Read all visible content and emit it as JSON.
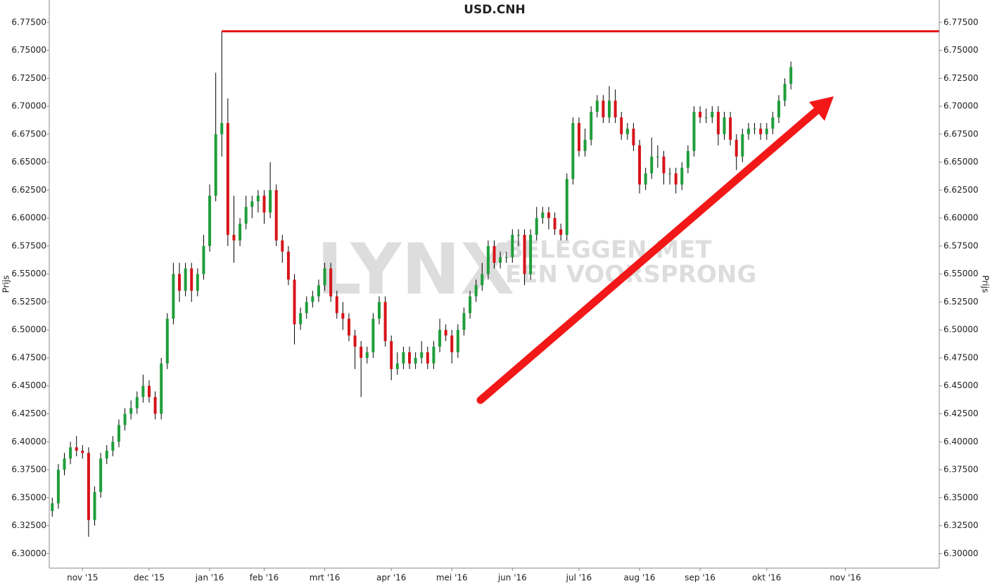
{
  "chart_data": {
    "type": "candlestick",
    "title": "USD.CNH",
    "y_label": "Prijs",
    "watermark": {
      "logo": "LYNX",
      "line1": "BELEGGEN MET",
      "line2": "EEN VOORSPRONG"
    },
    "ylim": [
      6.287,
      6.795
    ],
    "yticks": [
      {
        "value": 6.3,
        "label": "6.30000"
      },
      {
        "value": 6.325,
        "label": "6.32500"
      },
      {
        "value": 6.35,
        "label": "6.35000"
      },
      {
        "value": 6.375,
        "label": "6.37500"
      },
      {
        "value": 6.4,
        "label": "6.40000"
      },
      {
        "value": 6.425,
        "label": "6.42500"
      },
      {
        "value": 6.45,
        "label": "6.45000"
      },
      {
        "value": 6.475,
        "label": "6.47500"
      },
      {
        "value": 6.5,
        "label": "6.50000"
      },
      {
        "value": 6.525,
        "label": "6.52500"
      },
      {
        "value": 6.55,
        "label": "6.55000"
      },
      {
        "value": 6.575,
        "label": "6.57500"
      },
      {
        "value": 6.6,
        "label": "6.60000"
      },
      {
        "value": 6.625,
        "label": "6.62500"
      },
      {
        "value": 6.65,
        "label": "6.65000"
      },
      {
        "value": 6.675,
        "label": "6.67500"
      },
      {
        "value": 6.7,
        "label": "6.70000"
      },
      {
        "value": 6.725,
        "label": "6.72500"
      },
      {
        "value": 6.75,
        "label": "6.75000"
      },
      {
        "value": 6.775,
        "label": "6.77500"
      }
    ],
    "up_color": "#1f9e3a",
    "down_color": "#d7141a",
    "wick_color": "#000000",
    "hline": {
      "value": 6.767,
      "color": "#e8141a"
    },
    "arrow_color": "#f21818",
    "categories": [
      null,
      null,
      null,
      null,
      null,
      "nov '15",
      null,
      null,
      null,
      null,
      null,
      null,
      null,
      null,
      null,
      null,
      "dec '15",
      null,
      null,
      null,
      null,
      null,
      null,
      null,
      null,
      null,
      "jan '16",
      null,
      null,
      null,
      null,
      null,
      null,
      null,
      null,
      "feb '16",
      null,
      null,
      null,
      null,
      null,
      null,
      null,
      null,
      null,
      "mrt '16",
      null,
      null,
      null,
      null,
      null,
      null,
      null,
      null,
      null,
      null,
      "apr '16",
      null,
      null,
      null,
      null,
      null,
      null,
      null,
      null,
      null,
      "mei '16",
      null,
      null,
      null,
      null,
      null,
      null,
      null,
      null,
      null,
      "jun '16",
      null,
      null,
      null,
      null,
      null,
      null,
      null,
      null,
      null,
      null,
      "jul '16",
      null,
      null,
      null,
      null,
      null,
      null,
      null,
      null,
      null,
      "aug '16",
      null,
      null,
      null,
      null,
      null,
      null,
      null,
      null,
      null,
      "sep '16",
      null,
      null,
      null,
      null,
      null,
      null,
      null,
      null,
      null,
      null,
      "okt '16",
      null,
      null,
      null,
      null,
      null,
      null,
      null,
      null,
      null,
      null,
      null,
      null,
      "nov '16",
      null,
      null,
      null,
      null,
      null,
      null,
      null,
      null,
      null,
      null,
      null,
      null,
      null,
      null,
      null
    ],
    "open": [
      6.338,
      6.345,
      6.375,
      6.385,
      6.395,
      6.392,
      6.39,
      6.33,
      6.355,
      6.385,
      6.392,
      6.4,
      6.415,
      6.425,
      6.43,
      6.44,
      6.45,
      6.44,
      6.425,
      6.47,
      6.51,
      6.55,
      6.535,
      6.555,
      6.535,
      6.55,
      6.575,
      6.62,
      6.675,
      6.685,
      6.585,
      6.58,
      6.595,
      6.61,
      6.615,
      6.62,
      6.605,
      6.625,
      6.58,
      6.57,
      6.545,
      6.505,
      6.515,
      6.525,
      6.53,
      6.54,
      6.555,
      6.53,
      6.515,
      6.51,
      6.495,
      6.485,
      6.475,
      6.48,
      6.51,
      6.525,
      6.49,
      6.465,
      6.47,
      6.48,
      6.47,
      6.475,
      6.48,
      6.47,
      6.485,
      6.5,
      6.495,
      6.48,
      6.5,
      6.515,
      6.53,
      6.54,
      6.55,
      6.575,
      6.56,
      6.565,
      6.565,
      6.585,
      6.585,
      6.55,
      6.585,
      6.6,
      6.605,
      6.6,
      6.59,
      6.585,
      6.635,
      6.685,
      6.66,
      6.67,
      6.695,
      6.705,
      6.69,
      6.705,
      6.69,
      6.675,
      6.68,
      6.665,
      6.63,
      6.64,
      6.655,
      6.655,
      6.64,
      6.64,
      6.63,
      6.645,
      6.66,
      6.695,
      6.69,
      6.69,
      6.695,
      6.675,
      6.69,
      6.67,
      6.655,
      6.675,
      6.68,
      6.68,
      6.675,
      6.68,
      6.69,
      6.705,
      6.72,
      null,
      null,
      null,
      null,
      null,
      null,
      null,
      null,
      null,
      null,
      null,
      null,
      null,
      null,
      null,
      null,
      null,
      null,
      null,
      null,
      null,
      null,
      null,
      null
    ],
    "high": [
      6.35,
      6.38,
      6.39,
      6.4,
      6.405,
      6.397,
      6.395,
      6.36,
      6.39,
      6.397,
      6.405,
      6.42,
      6.43,
      6.437,
      6.445,
      6.46,
      6.455,
      6.445,
      6.475,
      6.515,
      6.56,
      6.56,
      6.56,
      6.56,
      6.555,
      6.585,
      6.63,
      6.73,
      6.767,
      6.707,
      6.62,
      6.6,
      6.62,
      6.62,
      6.625,
      6.625,
      6.65,
      6.63,
      6.585,
      6.575,
      6.55,
      6.52,
      6.53,
      6.535,
      6.545,
      6.56,
      6.56,
      6.535,
      6.525,
      6.515,
      6.5,
      6.49,
      6.485,
      6.515,
      6.53,
      6.53,
      6.495,
      6.48,
      6.485,
      6.485,
      6.48,
      6.49,
      6.485,
      6.49,
      6.51,
      6.505,
      6.5,
      6.505,
      6.52,
      6.535,
      6.545,
      6.56,
      6.58,
      6.58,
      6.57,
      6.57,
      6.59,
      6.59,
      6.59,
      6.59,
      6.61,
      6.61,
      6.61,
      6.605,
      6.595,
      6.64,
      6.69,
      6.69,
      6.68,
      6.7,
      6.71,
      6.71,
      6.718,
      6.715,
      6.695,
      6.685,
      6.685,
      6.67,
      6.645,
      6.672,
      6.665,
      6.66,
      6.645,
      6.645,
      6.65,
      6.665,
      6.7,
      6.7,
      6.698,
      6.7,
      6.7,
      6.695,
      6.695,
      6.675,
      6.68,
      6.685,
      6.685,
      6.685,
      6.685,
      6.695,
      6.71,
      6.725,
      6.74,
      null,
      null,
      null,
      null,
      null,
      null,
      null,
      null,
      null,
      null,
      null,
      null,
      null,
      null,
      null,
      null,
      null,
      null,
      null,
      null,
      null,
      null,
      null,
      null
    ],
    "low": [
      6.333,
      6.34,
      6.37,
      6.38,
      6.387,
      6.385,
      6.315,
      6.325,
      6.35,
      6.38,
      6.387,
      6.395,
      6.41,
      6.42,
      6.425,
      6.435,
      6.435,
      6.42,
      6.42,
      6.465,
      6.505,
      6.525,
      6.53,
      6.525,
      6.53,
      6.545,
      6.57,
      6.615,
      6.655,
      6.575,
      6.56,
      6.575,
      6.59,
      6.6,
      6.605,
      6.595,
      6.6,
      6.575,
      6.56,
      6.54,
      6.487,
      6.5,
      6.51,
      6.52,
      6.525,
      6.535,
      6.525,
      6.51,
      6.5,
      6.49,
      6.465,
      6.44,
      6.47,
      6.475,
      6.505,
      6.485,
      6.455,
      6.46,
      6.465,
      6.465,
      6.465,
      6.47,
      6.465,
      6.465,
      6.48,
      6.49,
      6.47,
      6.475,
      6.495,
      6.51,
      6.525,
      6.535,
      6.545,
      6.555,
      6.555,
      6.56,
      6.56,
      6.575,
      6.54,
      6.545,
      6.58,
      6.595,
      6.59,
      6.585,
      6.58,
      6.58,
      6.63,
      6.655,
      6.655,
      6.665,
      6.69,
      6.685,
      6.685,
      6.685,
      6.67,
      6.67,
      6.66,
      6.622,
      6.625,
      6.635,
      6.645,
      6.63,
      6.63,
      6.622,
      6.625,
      6.64,
      6.655,
      6.685,
      6.685,
      6.685,
      6.665,
      6.67,
      6.665,
      6.643,
      6.65,
      6.67,
      6.675,
      6.67,
      6.67,
      6.675,
      6.685,
      6.7,
      6.715,
      null,
      null,
      null,
      null,
      null,
      null,
      null,
      null,
      null,
      null,
      null,
      null,
      null,
      null,
      null,
      null,
      null,
      null,
      null,
      null,
      null,
      null,
      null,
      null
    ],
    "close": [
      6.345,
      6.375,
      6.385,
      6.395,
      6.392,
      6.39,
      6.33,
      6.355,
      6.385,
      6.392,
      6.4,
      6.415,
      6.425,
      6.43,
      6.44,
      6.45,
      6.44,
      6.425,
      6.47,
      6.51,
      6.55,
      6.535,
      6.555,
      6.535,
      6.55,
      6.575,
      6.62,
      6.675,
      6.685,
      6.585,
      6.58,
      6.595,
      6.61,
      6.615,
      6.62,
      6.605,
      6.625,
      6.58,
      6.57,
      6.545,
      6.505,
      6.515,
      6.525,
      6.53,
      6.54,
      6.555,
      6.53,
      6.515,
      6.51,
      6.495,
      6.485,
      6.475,
      6.48,
      6.51,
      6.525,
      6.49,
      6.465,
      6.47,
      6.48,
      6.47,
      6.475,
      6.48,
      6.47,
      6.485,
      6.5,
      6.495,
      6.48,
      6.5,
      6.515,
      6.53,
      6.54,
      6.55,
      6.575,
      6.56,
      6.565,
      6.565,
      6.585,
      6.585,
      6.55,
      6.585,
      6.6,
      6.605,
      6.6,
      6.59,
      6.585,
      6.635,
      6.685,
      6.66,
      6.67,
      6.695,
      6.705,
      6.69,
      6.705,
      6.69,
      6.675,
      6.68,
      6.665,
      6.63,
      6.64,
      6.655,
      6.655,
      6.64,
      6.64,
      6.63,
      6.645,
      6.66,
      6.695,
      6.69,
      6.69,
      6.695,
      6.675,
      6.69,
      6.67,
      6.655,
      6.675,
      6.68,
      6.68,
      6.675,
      6.68,
      6.69,
      6.705,
      6.72,
      6.735,
      null,
      null,
      null,
      null,
      null,
      null,
      null,
      null,
      null,
      null,
      null,
      null,
      null,
      null,
      null,
      null,
      null,
      null,
      null,
      null,
      null,
      null,
      null,
      null
    ]
  }
}
